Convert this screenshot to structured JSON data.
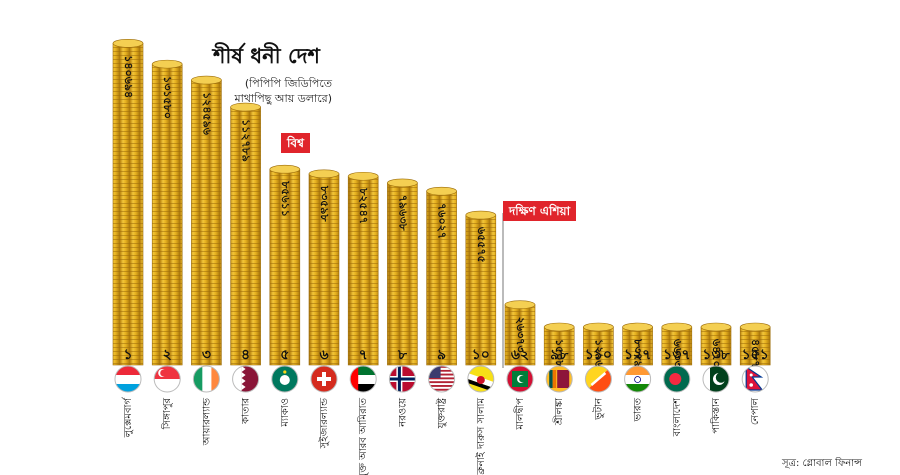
{
  "title": "শীর্ষ ধনী দেশ",
  "subtitle": "(পিপিপি জিডিপিতে মাথাপিছু আয় ডলারে)",
  "group_labels": {
    "world": "বিশ্ব",
    "south_asia": "দক্ষিণ এশিয়া"
  },
  "source": "সূত্র: গ্লোবাল ফিনান্স",
  "colors": {
    "coin": "#e8b320",
    "coin_dark": "#b9830f",
    "tag": "#e0242b"
  },
  "chart_data": {
    "type": "bar",
    "title": "শীর্ষ ধনী দেশ",
    "ylabel": "মাথাপিছু আয় (পিপিপি, ডলার)",
    "categories": [
      "লুক্সেমবার্গ",
      "সিঙ্গাপুর",
      "আয়ারল্যান্ড",
      "কাতার",
      "ম্যাকাও",
      "সুইজারল্যান্ড",
      "সংযুক্ত আরব আমিরাত",
      "নরওয়ে",
      "যুক্তরাষ্ট্র",
      "ব্রুনাই দারুস সালাম",
      "মালদ্বীপ",
      "শ্রীলঙ্কা",
      "ভুটান",
      "ভারত",
      "বাংলাদেশ",
      "পাকিস্তান",
      "নেপাল"
    ],
    "ranks": [
      "১",
      "২",
      "৩",
      "৪",
      "৫",
      "৬",
      "৭",
      "৮",
      "৯",
      "১০",
      "৬২",
      "৯৮",
      "১১০",
      "১২৭",
      "১৩৭",
      "১৩৮",
      "১৫১"
    ],
    "value_labels": [
      "১৪০৬৯৪",
      "১৩১৫৮০",
      "১২৪৫৯৬",
      "১১২৭৮৯",
      "৮৫৬১১",
      "৮৩৫৯৮",
      "৮২৫৪৭",
      "৭৯৬৩৮",
      "৭৬০২৭",
      "৬৫৫৭৫",
      "২৬৩৭৩",
      "১৫০৮৯",
      "১২৯৬৮",
      "৮৩৭৯",
      "৬৬৩৩",
      "৬৪৭০",
      "৪৫৮৭"
    ],
    "values": [
      140694,
      131580,
      124596,
      112789,
      85611,
      83598,
      82547,
      79638,
      76027,
      65575,
      26373,
      15089,
      12968,
      8379,
      6633,
      6470,
      4587
    ],
    "groups": [
      "world",
      "world",
      "world",
      "world",
      "world",
      "world",
      "world",
      "world",
      "world",
      "world",
      "south_asia",
      "south_asia",
      "south_asia",
      "south_asia",
      "south_asia",
      "south_asia",
      "south_asia"
    ],
    "flags": [
      "luxembourg-flag-icon",
      "singapore-flag-icon",
      "ireland-flag-icon",
      "qatar-flag-icon",
      "macau-flag-icon",
      "switzerland-flag-icon",
      "uae-flag-icon",
      "norway-flag-icon",
      "usa-flag-icon",
      "brunei-flag-icon",
      "maldives-flag-icon",
      "sri-lanka-flag-icon",
      "bhutan-flag-icon",
      "india-flag-icon",
      "bangladesh-flag-icon",
      "pakistan-flag-icon",
      "nepal-flag-icon"
    ],
    "ylim": [
      0,
      150000
    ],
    "grid": false,
    "legend": "none"
  }
}
